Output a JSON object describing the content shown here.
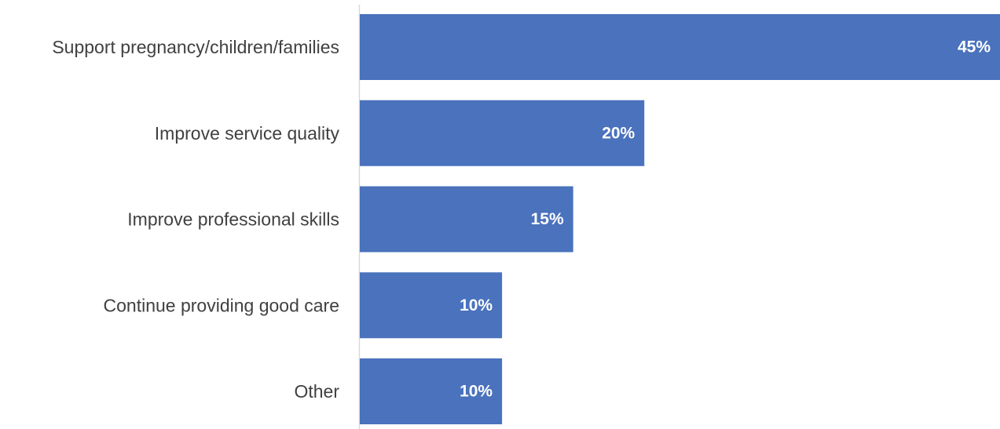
{
  "chart_data": {
    "type": "bar",
    "orientation": "horizontal",
    "title": "",
    "xlabel": "",
    "ylabel": "",
    "categories": [
      "Support pregnancy/children/families",
      "Improve service quality",
      "Improve professional skills",
      "Continue providing good care",
      "Other"
    ],
    "values": [
      45,
      20,
      15,
      10,
      10
    ],
    "value_labels": [
      "45%",
      "20%",
      "15%",
      "10%",
      "10%"
    ],
    "unit": "%",
    "xlim": [
      0,
      45
    ],
    "grid": false,
    "legend": "none",
    "colors": {
      "bar": "#4a72bd",
      "axis": "#d9d9d9",
      "category_text": "#404040",
      "value_text": "#ffffff"
    }
  }
}
